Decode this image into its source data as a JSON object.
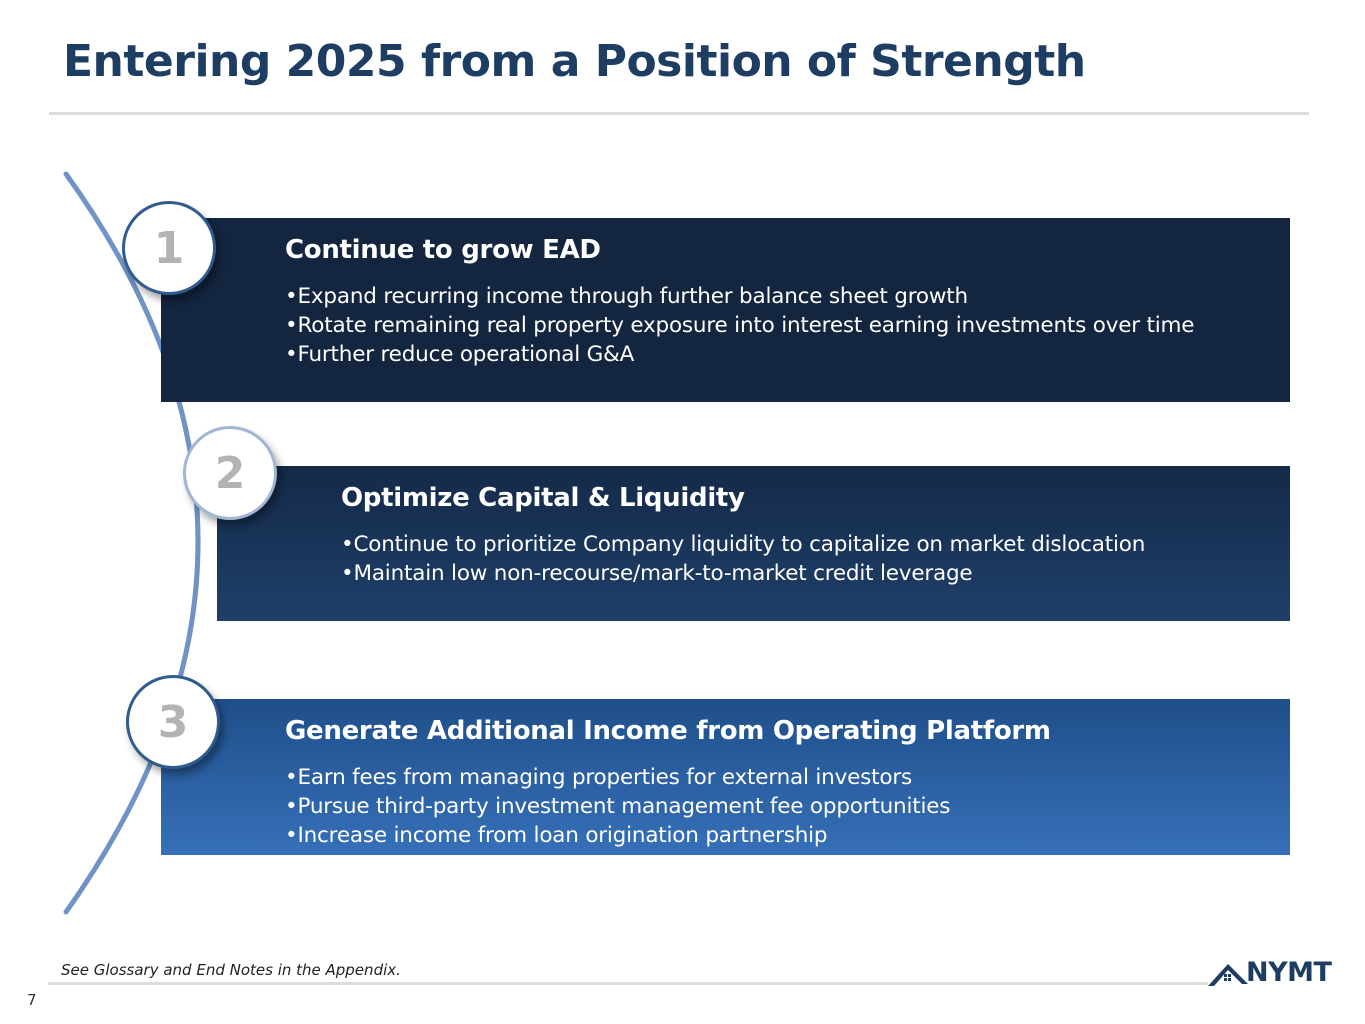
{
  "slide": {
    "title": "Entering 2025 from a Position of Strength",
    "footnote": "See Glossary and End Notes in the Appendix.",
    "page_number": "7",
    "logo_text": "NYMT"
  },
  "items": [
    {
      "number": "1",
      "heading": "Continue to grow EAD",
      "bullets": [
        "Expand recurring income through further balance sheet growth",
        "Rotate remaining real property exposure into interest earning investments over time",
        "Further reduce operational G&A"
      ]
    },
    {
      "number": "2",
      "heading": "Optimize Capital & Liquidity",
      "bullets": [
        "Continue to prioritize Company liquidity to capitalize on market dislocation",
        "Maintain low non-recourse/mark-to-market credit leverage"
      ]
    },
    {
      "number": "3",
      "heading": "Generate Additional Income from Operating Platform",
      "bullets": [
        "Earn fees from managing properties for external investors",
        "Pursue third-party investment management fee opportunities",
        "Increase income from loan origination partnership"
      ]
    }
  ],
  "colors": {
    "title": "#1e3d63",
    "card_1": "#13253f",
    "card_2": "#1f3f69",
    "card_3": "#3670b8",
    "arc": "#6f93c4"
  },
  "icons": {
    "logo": "house-roof-logo-icon"
  }
}
